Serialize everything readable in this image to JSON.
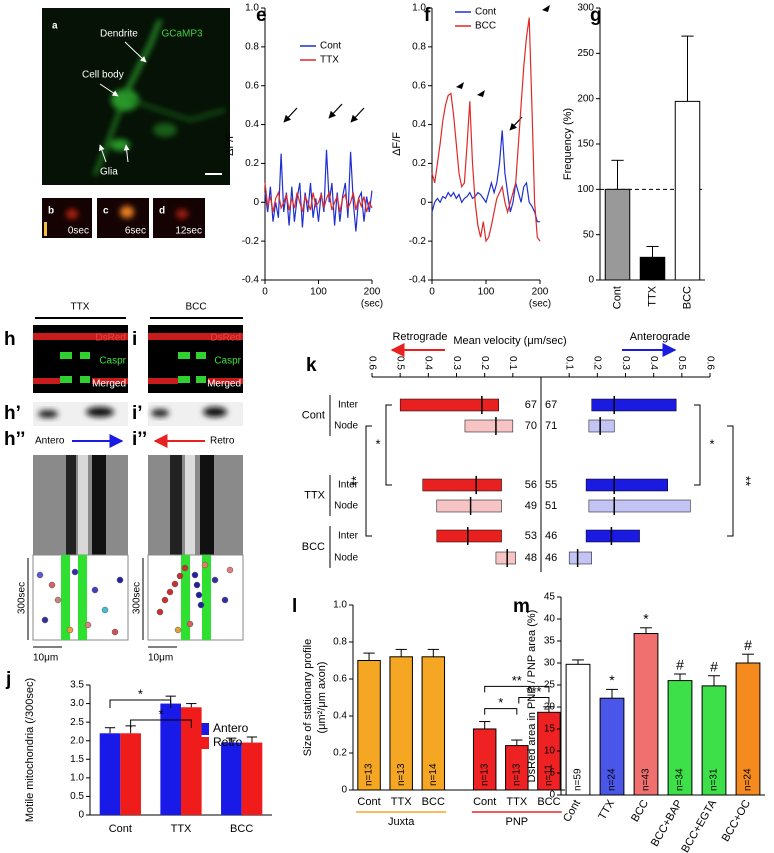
{
  "images": {
    "a": {
      "letter": "a",
      "labels": [
        "GCaMP3",
        "Dendrite",
        "Cell body",
        "Glia"
      ]
    },
    "bcd": [
      {
        "letter": "b",
        "time": "0sec"
      },
      {
        "letter": "c",
        "time": "6sec"
      },
      {
        "letter": "d",
        "time": "12sec"
      }
    ],
    "h": {
      "letters": [
        "h",
        "h’",
        "h’’"
      ],
      "condition": "TTX",
      "channels": [
        "DsRed",
        "Caspr",
        "Merged"
      ],
      "direction": "Antero",
      "time_scale": "300sec",
      "length_scale": "10μm"
    },
    "i": {
      "letters": [
        "i",
        "i’",
        "i’’"
      ],
      "condition": "BCC",
      "channels": [
        "DsRed",
        "Caspr",
        "Merged"
      ],
      "direction": "Retro",
      "time_scale": "300sec",
      "length_scale": "10μm"
    }
  },
  "chart_data": [
    {
      "type": "line",
      "label": "e",
      "ylabel": "ΔF/F",
      "x_unit": "(sec)",
      "x": [
        0,
        5,
        10,
        15,
        20,
        25,
        30,
        35,
        40,
        45,
        50,
        55,
        60,
        65,
        70,
        75,
        80,
        85,
        90,
        95,
        100,
        105,
        110,
        115,
        120,
        125,
        130,
        135,
        140,
        145,
        150,
        155,
        160,
        165,
        170,
        175,
        180,
        185,
        190,
        195,
        200
      ],
      "series": [
        {
          "name": "Cont",
          "color": "#1f2fd0",
          "values": [
            0.05,
            -0.05,
            0.08,
            -0.1,
            0.0,
            -0.08,
            0.25,
            -0.05,
            0.05,
            -0.12,
            0.08,
            -0.1,
            0.02,
            0.1,
            -0.13,
            0.05,
            -0.05,
            0.1,
            -0.08,
            0.02,
            -0.1,
            0.05,
            -0.05,
            0.27,
            0.0,
            0.1,
            -0.12,
            0.05,
            -0.1,
            0.03,
            0.1,
            -0.08,
            0.26,
            0.0,
            -0.15,
            0.02,
            0.05,
            -0.1,
            0.03,
            -0.05,
            0.06
          ]
        },
        {
          "name": "TTX",
          "color": "#e02828",
          "values": [
            0.1,
            -0.02,
            0.03,
            -0.05,
            0.02,
            0.05,
            -0.03,
            0.0,
            0.04,
            -0.04,
            0.02,
            -0.03,
            0.05,
            0.0,
            -0.05,
            0.03,
            0.0,
            -0.04,
            0.05,
            -0.02,
            0.0,
            0.04,
            -0.03,
            0.02,
            0.05,
            -0.04,
            0.0,
            0.03,
            -0.05,
            0.02,
            0.04,
            -0.03,
            0.0,
            0.05,
            -0.04,
            0.02,
            -0.02,
            0.03,
            -0.05,
            0.0,
            -0.03
          ]
        }
      ],
      "xlim": [
        0,
        200
      ],
      "xticks": [
        0,
        100,
        200
      ],
      "ylim": [
        -0.4,
        1
      ],
      "yticks": [
        {
          "value": 1,
          "label": "1.0"
        },
        0.8,
        0.6,
        0.4,
        0.2,
        0,
        -0.2,
        -0.4
      ]
    },
    {
      "type": "line",
      "label": "f",
      "ylabel": "ΔF/F",
      "x_unit": "(sec)",
      "x": [
        0,
        5,
        10,
        15,
        20,
        25,
        30,
        35,
        40,
        45,
        50,
        55,
        60,
        65,
        70,
        75,
        80,
        85,
        90,
        95,
        100,
        105,
        110,
        115,
        120,
        125,
        130,
        135,
        140,
        145,
        150,
        155,
        160,
        165,
        170,
        175,
        180,
        185,
        190,
        195,
        200
      ],
      "series": [
        {
          "name": "Cont",
          "color": "#1f2fd0",
          "values": [
            -0.05,
            0.0,
            0.02,
            0.0,
            0.03,
            0.02,
            0.05,
            0.03,
            0.05,
            0.02,
            0.04,
            0.0,
            0.02,
            0.03,
            0.05,
            0.02,
            0.03,
            0.05,
            0.04,
            0.02,
            0.0,
            0.05,
            0.1,
            0.05,
            0.1,
            0.2,
            0.37,
            0.15,
            0.05,
            -0.05,
            0.0,
            0.1,
            0.05,
            0.0,
            0.08,
            0.1,
            0.0,
            -0.02,
            -0.05,
            -0.1,
            -0.1
          ]
        },
        {
          "name": "BCC",
          "color": "#e02828",
          "values": [
            0.15,
            0.1,
            0.2,
            0.3,
            0.42,
            0.5,
            0.55,
            0.56,
            0.45,
            0.3,
            0.15,
            0.08,
            0.1,
            0.3,
            0.52,
            0.2,
            0.0,
            -0.12,
            -0.18,
            -0.1,
            -0.2,
            -0.18,
            -0.12,
            -0.05,
            0.02,
            0.05,
            0.08,
            0.0,
            -0.05,
            0.0,
            0.05,
            0.1,
            0.3,
            0.5,
            0.7,
            0.85,
            0.95,
            0.5,
            0.0,
            -0.18,
            -0.2
          ]
        }
      ],
      "xlim": [
        0,
        200
      ],
      "xticks": [
        0,
        100,
        200
      ],
      "ylim": [
        -0.4,
        1
      ],
      "yticks": [
        {
          "value": 1,
          "label": "1.0"
        },
        0.8,
        0.6,
        0.4,
        0.2,
        0,
        -0.2,
        -0.4
      ]
    },
    {
      "type": "bar",
      "label": "g",
      "ylabel": "Frequency (%)",
      "categories": [
        "Cont",
        "TTX",
        "BCC"
      ],
      "values": [
        100,
        25,
        197
      ],
      "errors": [
        32,
        12,
        72
      ],
      "colors": [
        "#999999",
        "#000000",
        "#ffffff"
      ],
      "reference_line": 100,
      "ylim": [
        0,
        300
      ],
      "yticks": [
        0,
        50,
        100,
        150,
        200,
        250,
        300
      ]
    },
    {
      "type": "range-bar",
      "label": "k",
      "title": "Mean velocity (μm/sec)",
      "left_label": "Retrograde",
      "right_label": "Anterograde",
      "groups": [
        "Cont",
        "TTX",
        "BCC"
      ],
      "rows": [
        "Inter",
        "Node",
        "Inter",
        "Node",
        "Inter",
        "Node"
      ],
      "xlim": [
        0,
        0.6
      ],
      "xticks": [
        0.1,
        0.2,
        0.3,
        0.4,
        0.5,
        0.6
      ],
      "series": [
        {
          "side": "left",
          "colors": [
            "#e82020",
            "#f6c4c4",
            "#e82020",
            "#f6c4c4",
            "#e82020",
            "#f6c4c4"
          ],
          "low": [
            0.15,
            0.1,
            0.14,
            0.14,
            0.14,
            0.09
          ],
          "high": [
            0.5,
            0.27,
            0.42,
            0.37,
            0.37,
            0.16
          ],
          "mean": [
            0.21,
            0.16,
            0.23,
            0.25,
            0.26,
            0.12
          ],
          "n": [
            67,
            70,
            56,
            49,
            53,
            48
          ]
        },
        {
          "side": "right",
          "colors": [
            "#1a1ae0",
            "#c4c4f4",
            "#1a1ae0",
            "#c4c4f4",
            "#1a1ae0",
            "#c4c4f4"
          ],
          "low": [
            0.18,
            0.17,
            0.16,
            0.17,
            0.16,
            0.1
          ],
          "high": [
            0.48,
            0.26,
            0.45,
            0.53,
            0.35,
            0.18
          ],
          "mean": [
            0.26,
            0.21,
            0.26,
            0.26,
            0.25,
            0.13
          ],
          "n": [
            67,
            71,
            55,
            51,
            46,
            46
          ]
        }
      ],
      "annotations": [
        "*",
        "**",
        "*",
        "**"
      ]
    },
    {
      "type": "grouped-bar",
      "label": "j",
      "ylabel": "Motile mitochondria (/300sec)",
      "categories": [
        "Cont",
        "TTX",
        "BCC"
      ],
      "series": [
        {
          "name": "Antero",
          "color": "#1a1ae8",
          "values": [
            2.2,
            3.0,
            1.95
          ],
          "errors": [
            0.15,
            0.2,
            0.12
          ]
        },
        {
          "name": "Retro",
          "color": "#f01c1c",
          "values": [
            2.2,
            2.9,
            1.95
          ],
          "errors": [
            0.2,
            0.1,
            0.15
          ]
        }
      ],
      "annotations": [
        "*",
        "*"
      ],
      "ylim": [
        0,
        3.5
      ],
      "yticks": [
        0,
        0.5,
        {
          "value": 1,
          "label": "1.0"
        },
        1.5,
        {
          "value": 2,
          "label": "2.0"
        },
        2.5,
        {
          "value": 3,
          "label": "3.0"
        },
        3.5
      ]
    },
    {
      "type": "bar",
      "label": "l",
      "ylabel": [
        "Size of stationary profile",
        "(μm²/μm axon)"
      ],
      "categories": [
        "Cont",
        "TTX",
        "BCC"
      ],
      "series": [
        {
          "name": "Juxta",
          "color": "#f5a623",
          "values": [
            0.7,
            0.72,
            0.72
          ],
          "errors": [
            0.04,
            0.04,
            0.04
          ],
          "value_labels": [
            "n=13",
            "n=13",
            "n=14"
          ]
        },
        {
          "name": "PNP",
          "color": "#ee2222",
          "values": [
            0.33,
            0.24,
            0.42
          ],
          "errors": [
            0.04,
            0.03,
            0.03
          ],
          "value_labels": [
            "n=13",
            "n=13",
            "n=11"
          ]
        }
      ],
      "annotations": [
        "**",
        "*",
        "***"
      ],
      "ylim": [
        0,
        1
      ],
      "yticks": [
        0,
        0.2,
        0.4,
        0.6,
        0.8,
        {
          "value": 1,
          "label": "1.0"
        }
      ]
    },
    {
      "type": "bar",
      "label": "m",
      "ylabel": "DsRed area in PNP / PNP area (%)",
      "categories": [
        "Cont",
        "TTX",
        "BCC",
        "BCC+BAP",
        "BCC+EGTA",
        "BCC+OC"
      ],
      "values": [
        29.7,
        22,
        36.7,
        26,
        24.8,
        30
      ],
      "errors": [
        1,
        2,
        1.3,
        1.5,
        2.3,
        2
      ],
      "colors": [
        "#ffffff",
        "#4a56e8",
        "#f07070",
        "#3ee04a",
        "#3ee04a",
        "#f58a1e"
      ],
      "value_labels": [
        "n=59",
        "n=24",
        "n=43",
        "n=34",
        "n=31",
        "n=24"
      ],
      "value_annotations": [
        null,
        "*",
        "*",
        "#",
        "#",
        "#"
      ],
      "ylim": [
        0,
        45
      ],
      "yticks": [
        0,
        5,
        10,
        15,
        20,
        25,
        30,
        35,
        40,
        45
      ]
    }
  ]
}
